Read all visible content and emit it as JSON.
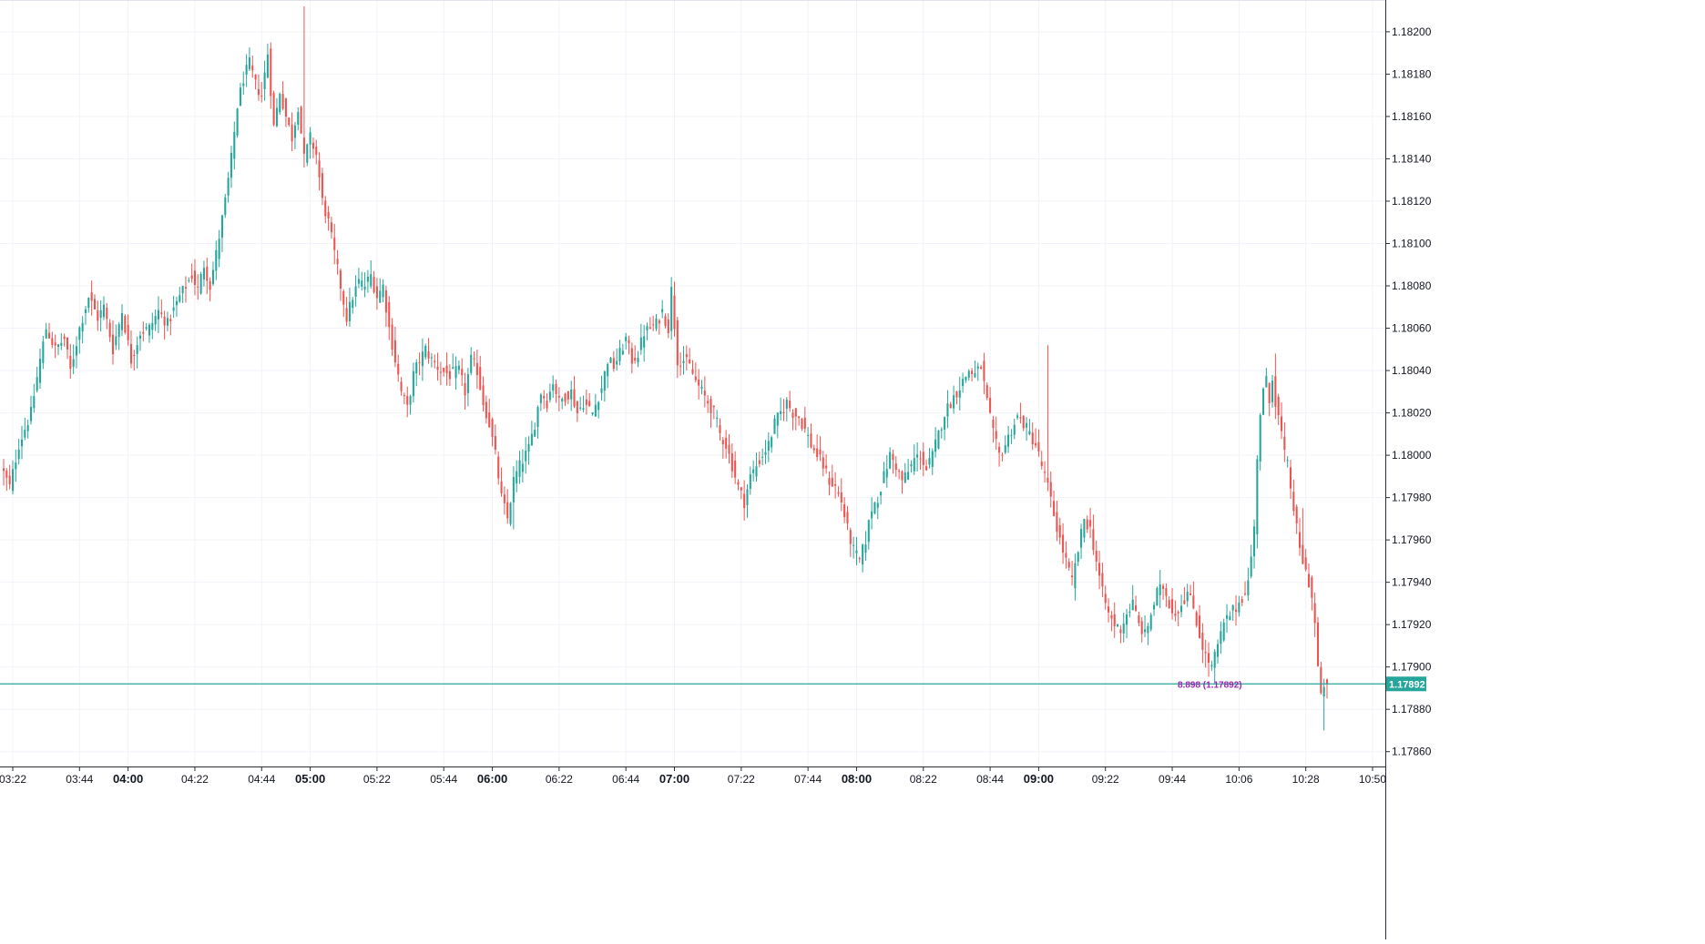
{
  "chart_data": {
    "type": "candlestick",
    "y_ticks": [
      "1.17860",
      "1.17880",
      "1.17900",
      "1.17920",
      "1.17940",
      "1.17960",
      "1.17980",
      "1.18000",
      "1.18020",
      "1.18040",
      "1.18060",
      "1.18080",
      "1.18100",
      "1.18120",
      "1.18140",
      "1.18160",
      "1.18180",
      "1.18200"
    ],
    "ylim": [
      1.17853,
      1.18215
    ],
    "x_ticks": [
      {
        "label": "03:22",
        "min": 202,
        "major": false
      },
      {
        "label": "03:44",
        "min": 224,
        "major": false
      },
      {
        "label": "04:00",
        "min": 240,
        "major": true
      },
      {
        "label": "04:22",
        "min": 262,
        "major": false
      },
      {
        "label": "04:44",
        "min": 284,
        "major": false
      },
      {
        "label": "05:00",
        "min": 300,
        "major": true
      },
      {
        "label": "05:22",
        "min": 322,
        "major": false
      },
      {
        "label": "05:44",
        "min": 344,
        "major": false
      },
      {
        "label": "06:00",
        "min": 360,
        "major": true
      },
      {
        "label": "06:22",
        "min": 382,
        "major": false
      },
      {
        "label": "06:44",
        "min": 404,
        "major": false
      },
      {
        "label": "07:00",
        "min": 420,
        "major": true
      },
      {
        "label": "07:22",
        "min": 442,
        "major": false
      },
      {
        "label": "07:44",
        "min": 464,
        "major": false
      },
      {
        "label": "08:00",
        "min": 480,
        "major": true
      },
      {
        "label": "08:22",
        "min": 502,
        "major": false
      },
      {
        "label": "08:44",
        "min": 524,
        "major": false
      },
      {
        "label": "09:00",
        "min": 540,
        "major": true
      },
      {
        "label": "09:22",
        "min": 562,
        "major": false
      },
      {
        "label": "09:44",
        "min": 584,
        "major": false
      },
      {
        "label": "10:06",
        "min": 606,
        "major": false
      },
      {
        "label": "10:28",
        "min": 628,
        "major": false
      },
      {
        "label": "10:50",
        "min": 650,
        "major": false
      }
    ],
    "path_points": [
      [
        199,
        1.17995
      ],
      [
        202,
        1.17985
      ],
      [
        205,
        1.18005
      ],
      [
        209,
        1.1802
      ],
      [
        212,
        1.18045
      ],
      [
        214,
        1.1806
      ],
      [
        217,
        1.1805
      ],
      [
        220,
        1.18055
      ],
      [
        222,
        1.1804
      ],
      [
        225,
        1.1806
      ],
      [
        228,
        1.18075
      ],
      [
        231,
        1.18065
      ],
      [
        233,
        1.1807
      ],
      [
        236,
        1.1805
      ],
      [
        239,
        1.18068
      ],
      [
        242,
        1.18045
      ],
      [
        245,
        1.18058
      ],
      [
        248,
        1.1806
      ],
      [
        251,
        1.18068
      ],
      [
        254,
        1.18062
      ],
      [
        258,
        1.18075
      ],
      [
        262,
        1.18085
      ],
      [
        264,
        1.18078
      ],
      [
        266,
        1.1809
      ],
      [
        268,
        1.1808
      ],
      [
        270,
        1.18095
      ],
      [
        273,
        1.1812
      ],
      [
        275,
        1.1814
      ],
      [
        277,
        1.18165
      ],
      [
        279,
        1.18178
      ],
      [
        281,
        1.18185
      ],
      [
        283,
        1.18175
      ],
      [
        285,
        1.1817
      ],
      [
        287,
        1.1819
      ],
      [
        289,
        1.18155
      ],
      [
        291,
        1.18172
      ],
      [
        293,
        1.1816
      ],
      [
        295,
        1.1815
      ],
      [
        297,
        1.18165
      ],
      [
        299,
        1.1814
      ],
      [
        301,
        1.1815
      ],
      [
        303,
        1.18142
      ],
      [
        305,
        1.1812
      ],
      [
        307,
        1.1811
      ],
      [
        309,
        1.18095
      ],
      [
        311,
        1.1808
      ],
      [
        313,
        1.18065
      ],
      [
        315,
        1.18075
      ],
      [
        317,
        1.18082
      ],
      [
        319,
        1.1808
      ],
      [
        321,
        1.18085
      ],
      [
        323,
        1.18075
      ],
      [
        325,
        1.1808
      ],
      [
        327,
        1.1806
      ],
      [
        329,
        1.18045
      ],
      [
        331,
        1.1803
      ],
      [
        333,
        1.18022
      ],
      [
        335,
        1.18038
      ],
      [
        337,
        1.18045
      ],
      [
        339,
        1.1805
      ],
      [
        341,
        1.18045
      ],
      [
        344,
        1.1804
      ],
      [
        347,
        1.18038
      ],
      [
        350,
        1.1804
      ],
      [
        352,
        1.1803
      ],
      [
        354,
        1.18045
      ],
      [
        356,
        1.1804
      ],
      [
        358,
        1.18025
      ],
      [
        360,
        1.18015
      ],
      [
        362,
        1.18
      ],
      [
        364,
        1.1798
      ],
      [
        366,
        1.1797
      ],
      [
        368,
        1.17988
      ],
      [
        370,
        1.17995
      ],
      [
        373,
        1.18003
      ],
      [
        375,
        1.18015
      ],
      [
        377,
        1.1803
      ],
      [
        379,
        1.18025
      ],
      [
        381,
        1.18035
      ],
      [
        383,
        1.18025
      ],
      [
        385,
        1.18028
      ],
      [
        387,
        1.1803
      ],
      [
        389,
        1.1802
      ],
      [
        391,
        1.18025
      ],
      [
        394,
        1.1802
      ],
      [
        397,
        1.18032
      ],
      [
        399,
        1.18045
      ],
      [
        401,
        1.18042
      ],
      [
        403,
        1.18048
      ],
      [
        405,
        1.18055
      ],
      [
        407,
        1.18045
      ],
      [
        409,
        1.18048
      ],
      [
        411,
        1.18058
      ],
      [
        413,
        1.1806
      ],
      [
        415,
        1.18062
      ],
      [
        417,
        1.18068
      ],
      [
        419,
        1.1806
      ],
      [
        420,
        1.18078
      ],
      [
        422,
        1.18045
      ],
      [
        424,
        1.18045
      ],
      [
        426,
        1.18042
      ],
      [
        428,
        1.18035
      ],
      [
        430,
        1.1803
      ],
      [
        432,
        1.18025
      ],
      [
        434,
        1.1802
      ],
      [
        436,
        1.1801
      ],
      [
        438,
        1.18005
      ],
      [
        440,
        1.17995
      ],
      [
        442,
        1.17985
      ],
      [
        444,
        1.17978
      ],
      [
        446,
        1.1799
      ],
      [
        448,
        1.17995
      ],
      [
        450,
        1.18
      ],
      [
        452,
        1.18005
      ],
      [
        454,
        1.18015
      ],
      [
        456,
        1.1802
      ],
      [
        458,
        1.18025
      ],
      [
        460,
        1.1802
      ],
      [
        462,
        1.18018
      ],
      [
        464,
        1.18012
      ],
      [
        466,
        1.18005
      ],
      [
        468,
        1.18
      ],
      [
        470,
        1.17995
      ],
      [
        472,
        1.17988
      ],
      [
        474,
        1.17985
      ],
      [
        476,
        1.17978
      ],
      [
        478,
        1.17965
      ],
      [
        480,
        1.17955
      ],
      [
        482,
        1.1795
      ],
      [
        484,
        1.1796
      ],
      [
        486,
        1.17975
      ],
      [
        488,
        1.1798
      ],
      [
        490,
        1.1799
      ],
      [
        492,
        1.18
      ],
      [
        494,
        1.17995
      ],
      [
        496,
        1.17988
      ],
      [
        498,
        1.17992
      ],
      [
        500,
        1.17998
      ],
      [
        502,
        1.18
      ],
      [
        504,
        1.17993
      ],
      [
        506,
        1.18
      ],
      [
        508,
        1.1801
      ],
      [
        510,
        1.1802
      ],
      [
        512,
        1.18025
      ],
      [
        514,
        1.1803
      ],
      [
        516,
        1.18035
      ],
      [
        518,
        1.1804
      ],
      [
        520,
        1.18038
      ],
      [
        522,
        1.18042
      ],
      [
        524,
        1.18025
      ],
      [
        526,
        1.1801
      ],
      [
        528,
        1.18
      ],
      [
        530,
        1.18005
      ],
      [
        532,
        1.18012
      ],
      [
        534,
        1.18018
      ],
      [
        536,
        1.18015
      ],
      [
        538,
        1.1801
      ],
      [
        540,
        1.18005
      ],
      [
        542,
        1.17995
      ],
      [
        544,
        1.17985
      ],
      [
        546,
        1.17972
      ],
      [
        548,
        1.1796
      ],
      [
        550,
        1.1795
      ],
      [
        552,
        1.1794
      ],
      [
        554,
        1.17955
      ],
      [
        556,
        1.1797
      ],
      [
        558,
        1.17965
      ],
      [
        560,
        1.1795
      ],
      [
        562,
        1.17935
      ],
      [
        564,
        1.17925
      ],
      [
        566,
        1.1792
      ],
      [
        568,
        1.17918
      ],
      [
        570,
        1.17925
      ],
      [
        572,
        1.1793
      ],
      [
        574,
        1.1792
      ],
      [
        576,
        1.17915
      ],
      [
        578,
        1.17925
      ],
      [
        580,
        1.17935
      ],
      [
        582,
        1.17938
      ],
      [
        584,
        1.1793
      ],
      [
        586,
        1.17925
      ],
      [
        588,
        1.1793
      ],
      [
        590,
        1.17935
      ],
      [
        592,
        1.17928
      ],
      [
        594,
        1.17915
      ],
      [
        596,
        1.17905
      ],
      [
        598,
        1.179
      ],
      [
        600,
        1.1791
      ],
      [
        602,
        1.1792
      ],
      [
        604,
        1.17925
      ],
      [
        606,
        1.17928
      ],
      [
        608,
        1.17933
      ],
      [
        610,
        1.1794
      ],
      [
        612,
        1.17965
      ],
      [
        613,
        1.18
      ],
      [
        614,
        1.1802
      ],
      [
        615,
        1.1803
      ],
      [
        616,
        1.18035
      ],
      [
        617,
        1.18025
      ],
      [
        618,
        1.18038
      ],
      [
        619,
        1.18025
      ],
      [
        620,
        1.18018
      ],
      [
        621,
        1.1801
      ],
      [
        622,
        1.18
      ],
      [
        623,
        1.17995
      ],
      [
        624,
        1.17985
      ],
      [
        625,
        1.17975
      ],
      [
        626,
        1.17965
      ],
      [
        627,
        1.17955
      ],
      [
        628,
        1.1795
      ],
      [
        629,
        1.17945
      ],
      [
        630,
        1.1794
      ],
      [
        631,
        1.17933
      ],
      [
        632,
        1.1792
      ],
      [
        633,
        1.179
      ],
      [
        634,
        1.17885
      ],
      [
        635,
        1.17892
      ]
    ],
    "spikes": {
      "627": 1.17975,
      "634": 1.1787,
      "298": 1.18212,
      "420": 1.18082,
      "543": 1.18052,
      "618": 1.18048,
      "367": 1.17965,
      "482": 1.17945
    },
    "last_price": {
      "value": 1.17892,
      "label": "1.17892"
    },
    "overlay_label": "8.898 (1.17892)"
  },
  "colors": {
    "up": "#26a69a",
    "down": "#ef5350",
    "grid": "#f0f3fa",
    "axis_line": "#2a2e39",
    "price_line": "#26a69a",
    "overlay_text": "#9c27b0",
    "axis_text": "#131722"
  }
}
